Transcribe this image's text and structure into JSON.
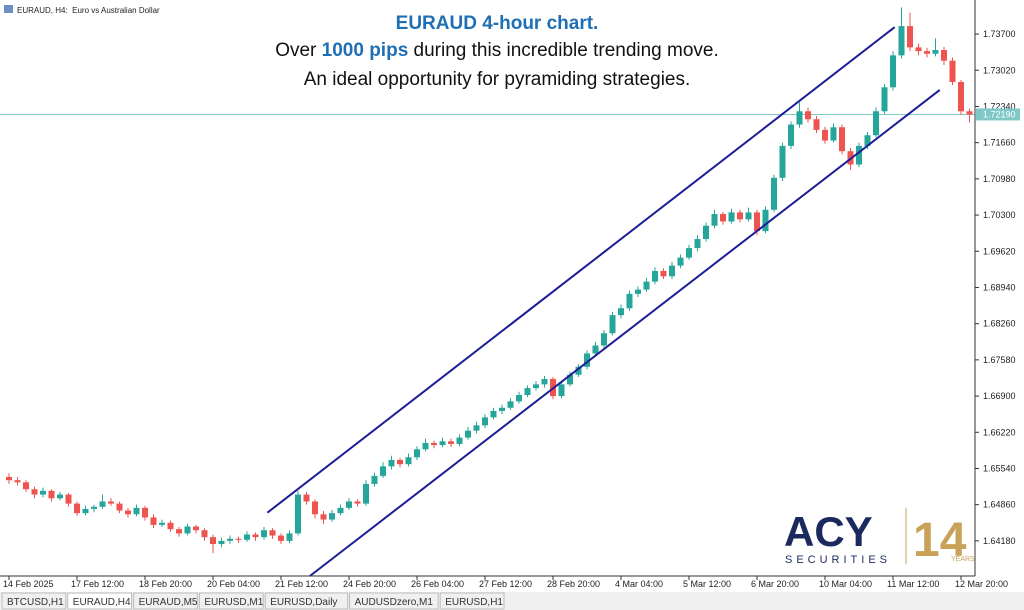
{
  "chart_data": {
    "type": "candlestick",
    "header": "EURAUD, H4:  Euro vs Australian Dollar",
    "annotation": {
      "line1": "EURAUD 4-hour chart.",
      "line2": [
        "Over ",
        "1000 pips",
        " during this incredible trending move."
      ],
      "line3": "An ideal opportunity for pyramiding strategies."
    },
    "up_color": "#26a69a",
    "down_color": "#ef5350",
    "channel_color": "#1c1c96",
    "categories": [
      "14 Feb 2025",
      null,
      null,
      null,
      null,
      null,
      null,
      null,
      "17 Feb 12:00",
      null,
      null,
      null,
      null,
      null,
      null,
      null,
      "18 Feb 20:00",
      null,
      null,
      null,
      null,
      null,
      null,
      null,
      "20 Feb 04:00",
      null,
      null,
      null,
      null,
      null,
      null,
      null,
      "21 Feb 12:00",
      null,
      null,
      null,
      null,
      null,
      null,
      null,
      "24 Feb 20:00",
      null,
      null,
      null,
      null,
      null,
      null,
      null,
      "26 Feb 04:00",
      null,
      null,
      null,
      null,
      null,
      null,
      null,
      "27 Feb 12:00",
      null,
      null,
      null,
      null,
      null,
      null,
      null,
      "28 Feb 20:00",
      null,
      null,
      null,
      null,
      null,
      null,
      null,
      "4 Mar 04:00",
      null,
      null,
      null,
      null,
      null,
      null,
      null,
      "5 Mar 12:00",
      null,
      null,
      null,
      null,
      null,
      null,
      null,
      "6 Mar 20:00",
      null,
      null,
      null,
      null,
      null,
      null,
      null,
      "10 Mar 04:00",
      null,
      null,
      null,
      null,
      null,
      null,
      null,
      "11 Mar 12:00",
      null,
      null,
      null,
      null,
      null,
      null,
      null,
      "12 Mar 20:00",
      null
    ],
    "candles": [
      [
        1.6538,
        1.6545,
        1.6525,
        1.6532
      ],
      [
        1.6532,
        1.6538,
        1.6522,
        1.6528
      ],
      [
        1.6528,
        1.6532,
        1.651,
        1.6515
      ],
      [
        1.6515,
        1.652,
        1.6498,
        1.6505
      ],
      [
        1.6505,
        1.6518,
        1.65,
        1.6512
      ],
      [
        1.6512,
        1.6515,
        1.6492,
        1.6498
      ],
      [
        1.6498,
        1.651,
        1.6494,
        1.6505
      ],
      [
        1.6505,
        1.6508,
        1.6482,
        1.6488
      ],
      [
        1.6488,
        1.6492,
        1.6465,
        1.647
      ],
      [
        1.647,
        1.6484,
        1.6466,
        1.6478
      ],
      [
        1.6478,
        1.6486,
        1.6472,
        1.6482
      ],
      [
        1.6482,
        1.6505,
        1.6478,
        1.6492
      ],
      [
        1.6492,
        1.6498,
        1.6484,
        1.6488
      ],
      [
        1.6488,
        1.6492,
        1.647,
        1.6475
      ],
      [
        1.6475,
        1.648,
        1.6462,
        1.6468
      ],
      [
        1.6468,
        1.6486,
        1.6464,
        1.648
      ],
      [
        1.648,
        1.6484,
        1.6456,
        1.6462
      ],
      [
        1.6462,
        1.6468,
        1.6442,
        1.6448
      ],
      [
        1.6448,
        1.6458,
        1.6444,
        1.6452
      ],
      [
        1.6452,
        1.6456,
        1.6435,
        1.644
      ],
      [
        1.644,
        1.6444,
        1.6426,
        1.6432
      ],
      [
        1.6432,
        1.645,
        1.6428,
        1.6445
      ],
      [
        1.6445,
        1.6448,
        1.6432,
        1.6438
      ],
      [
        1.6438,
        1.6442,
        1.6418,
        1.6425
      ],
      [
        1.6425,
        1.643,
        1.6395,
        1.6412
      ],
      [
        1.6412,
        1.6424,
        1.6406,
        1.6418
      ],
      [
        1.6418,
        1.6428,
        1.6412,
        1.6422
      ],
      [
        1.6422,
        1.6426,
        1.6414,
        1.642
      ],
      [
        1.642,
        1.6436,
        1.6416,
        1.643
      ],
      [
        1.643,
        1.6434,
        1.6418,
        1.6425
      ],
      [
        1.6425,
        1.6444,
        1.642,
        1.6438
      ],
      [
        1.6438,
        1.6442,
        1.6422,
        1.6428
      ],
      [
        1.6428,
        1.6432,
        1.6412,
        1.6418
      ],
      [
        1.6418,
        1.6438,
        1.6414,
        1.6432
      ],
      [
        1.6432,
        1.6512,
        1.6428,
        1.6505
      ],
      [
        1.6505,
        1.651,
        1.6486,
        1.6492
      ],
      [
        1.6492,
        1.6496,
        1.646,
        1.6468
      ],
      [
        1.6468,
        1.6474,
        1.645,
        1.6458
      ],
      [
        1.6458,
        1.6476,
        1.6454,
        1.647
      ],
      [
        1.647,
        1.6486,
        1.6466,
        1.648
      ],
      [
        1.648,
        1.6498,
        1.6476,
        1.6492
      ],
      [
        1.6492,
        1.6496,
        1.6482,
        1.6488
      ],
      [
        1.6488,
        1.6532,
        1.6484,
        1.6525
      ],
      [
        1.6525,
        1.6546,
        1.652,
        1.654
      ],
      [
        1.654,
        1.6566,
        1.6536,
        1.6558
      ],
      [
        1.6558,
        1.6578,
        1.6552,
        1.657
      ],
      [
        1.657,
        1.6574,
        1.6556,
        1.6562
      ],
      [
        1.6562,
        1.6582,
        1.6558,
        1.6575
      ],
      [
        1.6575,
        1.6596,
        1.657,
        1.659
      ],
      [
        1.659,
        1.661,
        1.6586,
        1.6602
      ],
      [
        1.6602,
        1.6606,
        1.6592,
        1.6598
      ],
      [
        1.6598,
        1.6612,
        1.6594,
        1.6605
      ],
      [
        1.6605,
        1.661,
        1.6594,
        1.66
      ],
      [
        1.66,
        1.6618,
        1.6596,
        1.6612
      ],
      [
        1.6612,
        1.6632,
        1.6608,
        1.6625
      ],
      [
        1.6625,
        1.6642,
        1.662,
        1.6635
      ],
      [
        1.6635,
        1.6656,
        1.663,
        1.665
      ],
      [
        1.665,
        1.6668,
        1.6646,
        1.6662
      ],
      [
        1.6662,
        1.6674,
        1.6656,
        1.6668
      ],
      [
        1.6668,
        1.6686,
        1.6664,
        1.668
      ],
      [
        1.668,
        1.6698,
        1.6676,
        1.6692
      ],
      [
        1.6692,
        1.671,
        1.6688,
        1.6705
      ],
      [
        1.6705,
        1.6718,
        1.67,
        1.6712
      ],
      [
        1.6712,
        1.6728,
        1.6706,
        1.6722
      ],
      [
        1.6722,
        1.6726,
        1.6684,
        1.669
      ],
      [
        1.669,
        1.6718,
        1.6686,
        1.6712
      ],
      [
        1.6712,
        1.6736,
        1.6708,
        1.673
      ],
      [
        1.673,
        1.675,
        1.6726,
        1.6745
      ],
      [
        1.6745,
        1.6776,
        1.674,
        1.677
      ],
      [
        1.677,
        1.6792,
        1.6764,
        1.6785
      ],
      [
        1.6785,
        1.6814,
        1.678,
        1.6808
      ],
      [
        1.6808,
        1.6848,
        1.6804,
        1.6842
      ],
      [
        1.6842,
        1.6862,
        1.6836,
        1.6855
      ],
      [
        1.6855,
        1.6888,
        1.685,
        1.6882
      ],
      [
        1.6882,
        1.6896,
        1.6876,
        1.689
      ],
      [
        1.689,
        1.6912,
        1.6886,
        1.6905
      ],
      [
        1.6905,
        1.6932,
        1.69,
        1.6925
      ],
      [
        1.6925,
        1.693,
        1.691,
        1.6915
      ],
      [
        1.6915,
        1.6942,
        1.691,
        1.6935
      ],
      [
        1.6935,
        1.6956,
        1.693,
        1.695
      ],
      [
        1.695,
        1.6974,
        1.6946,
        1.6968
      ],
      [
        1.6968,
        1.6992,
        1.6962,
        1.6985
      ],
      [
        1.6985,
        1.7016,
        1.698,
        1.701
      ],
      [
        1.701,
        1.704,
        1.7005,
        1.7032
      ],
      [
        1.7032,
        1.7036,
        1.7012,
        1.7018
      ],
      [
        1.7018,
        1.7042,
        1.7014,
        1.7035
      ],
      [
        1.7035,
        1.704,
        1.7016,
        1.7022
      ],
      [
        1.7022,
        1.7044,
        1.7018,
        1.7035
      ],
      [
        1.7035,
        1.704,
        1.6992,
        1.7
      ],
      [
        1.7,
        1.7046,
        1.6996,
        1.704
      ],
      [
        1.704,
        1.7106,
        1.7036,
        1.71
      ],
      [
        1.71,
        1.7166,
        1.7094,
        1.716
      ],
      [
        1.716,
        1.7206,
        1.7154,
        1.72
      ],
      [
        1.72,
        1.7242,
        1.7194,
        1.7225
      ],
      [
        1.7225,
        1.7232,
        1.7204,
        1.721
      ],
      [
        1.721,
        1.7216,
        1.7184,
        1.719
      ],
      [
        1.719,
        1.7196,
        1.7164,
        1.717
      ],
      [
        1.717,
        1.7202,
        1.7166,
        1.7195
      ],
      [
        1.7195,
        1.72,
        1.7144,
        1.715
      ],
      [
        1.715,
        1.7156,
        1.7115,
        1.7125
      ],
      [
        1.7125,
        1.7166,
        1.712,
        1.716
      ],
      [
        1.716,
        1.7186,
        1.7154,
        1.718
      ],
      [
        1.718,
        1.7232,
        1.7176,
        1.7225
      ],
      [
        1.7225,
        1.7276,
        1.722,
        1.727
      ],
      [
        1.727,
        1.7338,
        1.7264,
        1.733
      ],
      [
        1.733,
        1.742,
        1.7324,
        1.7385
      ],
      [
        1.7385,
        1.741,
        1.7338,
        1.7345
      ],
      [
        1.7345,
        1.7352,
        1.733,
        1.7338
      ],
      [
        1.7338,
        1.7344,
        1.7326,
        1.7333
      ],
      [
        1.7333,
        1.7362,
        1.7328,
        1.734
      ],
      [
        1.734,
        1.7346,
        1.7312,
        1.732
      ],
      [
        1.732,
        1.7326,
        1.7274,
        1.728
      ],
      [
        1.728,
        1.7284,
        1.7218,
        1.7225
      ],
      [
        1.7225,
        1.723,
        1.7204,
        1.7219
      ]
    ],
    "ylim": [
      1.6352,
      1.7434
    ],
    "yticks": [
      {
        "value": 1.737,
        "label": "1.73700"
      },
      {
        "value": 1.7302,
        "label": "1.73020"
      },
      {
        "value": 1.7234,
        "label": "1.72340"
      },
      {
        "value": 1.7166,
        "label": "1.71660"
      },
      {
        "value": 1.7098,
        "label": "1.70980"
      },
      {
        "value": 1.703,
        "label": "1.70300"
      },
      {
        "value": 1.6962,
        "label": "1.69620"
      },
      {
        "value": 1.6894,
        "label": "1.68940"
      },
      {
        "value": 1.6826,
        "label": "1.68260"
      },
      {
        "value": 1.6758,
        "label": "1.67580"
      },
      {
        "value": 1.669,
        "label": "1.66900"
      },
      {
        "value": 1.6622,
        "label": "1.66220"
      },
      {
        "value": 1.6554,
        "label": "1.65540"
      },
      {
        "value": 1.6486,
        "label": "1.64860"
      },
      {
        "value": 1.6418,
        "label": "1.64180"
      }
    ],
    "price_line": {
      "value": 1.7219,
      "label": "1.72190",
      "color": "#7fc8c8"
    },
    "channel": [
      {
        "x": [
          30.4,
          104.2
        ],
        "y": [
          1.6471,
          1.7383
        ]
      },
      {
        "x": [
          35.4,
          109.5
        ],
        "y": [
          1.6352,
          1.7265
        ]
      }
    ]
  },
  "logo": {
    "brand": "ACY",
    "sub": "SECURITIES",
    "years_num": "14",
    "years": "YEARS"
  },
  "tabs": [
    "BTCUSD,H1",
    "EURAUD,H4",
    "EURAUD,M5",
    "EURUSD,M1",
    "EURUSD,Daily",
    "AUDUSDzero,M1",
    "EURUSD,H1"
  ],
  "active_tab": 1
}
